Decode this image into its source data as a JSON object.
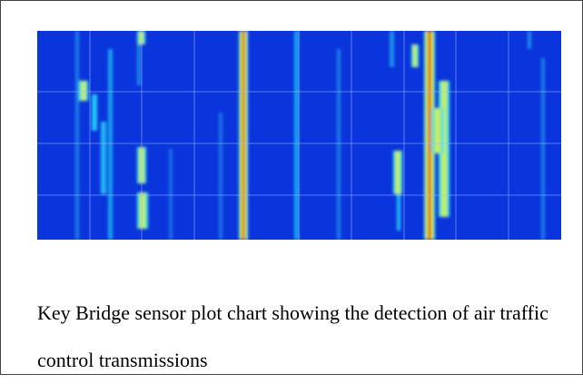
{
  "figure": {
    "caption": "Key Bridge sensor plot chart showing the detection of air traffic control transmissions"
  }
}
